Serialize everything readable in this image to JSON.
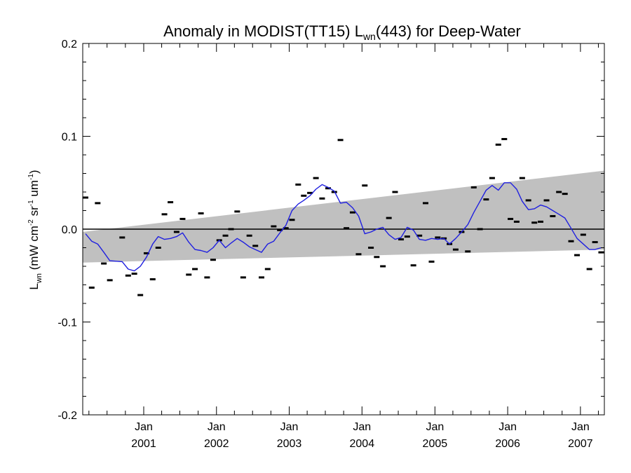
{
  "chart_data": {
    "type": "scatter",
    "title": {
      "prefix": "Anomaly in MODIST(TT15) L",
      "sub": "wn",
      "suffix": "(443) for Deep-Water"
    },
    "ylabel": {
      "L": "L",
      "wn": "wn",
      "p1": " (mW cm",
      "e1": "-2",
      "p2": " sr",
      "e2": "-1",
      "p3": " um",
      "e3": "-1",
      "p4": ")"
    },
    "xlim": [
      "2000-03-01",
      "2007-05-01"
    ],
    "ylim": [
      -0.2,
      0.2
    ],
    "yticks": [
      {
        "value": 0.2,
        "label": "0.2"
      },
      {
        "value": 0.1,
        "label": "0.1"
      },
      {
        "value": 0.0,
        "label": "0.0"
      },
      {
        "value": -0.1,
        "label": "-0.1"
      },
      {
        "value": -0.2,
        "label": "-0.2"
      }
    ],
    "xticks": [
      {
        "date": "2001-01-01",
        "line1": "Jan",
        "line2": "2001"
      },
      {
        "date": "2002-01-01",
        "line1": "Jan",
        "line2": "2002"
      },
      {
        "date": "2003-01-01",
        "line1": "Jan",
        "line2": "2003"
      },
      {
        "date": "2004-01-01",
        "line1": "Jan",
        "line2": "2004"
      },
      {
        "date": "2005-01-01",
        "line1": "Jan",
        "line2": "2005"
      },
      {
        "date": "2006-01-01",
        "line1": "Jan",
        "line2": "2006"
      },
      {
        "date": "2007-01-01",
        "line1": "Jan",
        "line2": "2007"
      }
    ],
    "band": {
      "color": "#c0c0c0",
      "upper": [
        {
          "x": "2000-03-01",
          "y": -0.003
        },
        {
          "x": "2007-05-01",
          "y": 0.063
        }
      ],
      "lower": [
        {
          "x": "2000-03-01",
          "y": -0.036
        },
        {
          "x": "2007-05-01",
          "y": -0.022
        }
      ]
    },
    "zero_line": {
      "y": 0.0,
      "color": "#000000"
    },
    "monthly_points": {
      "marker": "dash",
      "color": "#000000",
      "points": [
        {
          "x": "2000-03",
          "y": 0.034
        },
        {
          "x": "2000-04",
          "y": -0.063
        },
        {
          "x": "2000-05",
          "y": 0.028
        },
        {
          "x": "2000-06",
          "y": -0.037
        },
        {
          "x": "2000-07",
          "y": -0.055
        },
        {
          "x": "2000-09",
          "y": -0.009
        },
        {
          "x": "2000-10",
          "y": -0.05
        },
        {
          "x": "2000-11",
          "y": -0.048
        },
        {
          "x": "2000-12",
          "y": -0.071
        },
        {
          "x": "2001-01",
          "y": -0.026
        },
        {
          "x": "2001-02",
          "y": -0.054
        },
        {
          "x": "2001-03",
          "y": -0.02
        },
        {
          "x": "2001-04",
          "y": 0.016
        },
        {
          "x": "2001-05",
          "y": 0.029
        },
        {
          "x": "2001-06",
          "y": -0.003
        },
        {
          "x": "2001-07",
          "y": 0.011
        },
        {
          "x": "2001-08",
          "y": -0.049
        },
        {
          "x": "2001-09",
          "y": -0.043
        },
        {
          "x": "2001-10",
          "y": 0.017
        },
        {
          "x": "2001-11",
          "y": -0.052
        },
        {
          "x": "2001-12",
          "y": -0.033
        },
        {
          "x": "2002-01",
          "y": -0.012
        },
        {
          "x": "2002-02",
          "y": -0.007
        },
        {
          "x": "2002-03",
          "y": 0.0
        },
        {
          "x": "2002-04",
          "y": 0.019
        },
        {
          "x": "2002-05",
          "y": -0.052
        },
        {
          "x": "2002-06",
          "y": -0.007
        },
        {
          "x": "2002-07",
          "y": -0.018
        },
        {
          "x": "2002-08",
          "y": -0.052
        },
        {
          "x": "2002-09",
          "y": -0.043
        },
        {
          "x": "2002-10",
          "y": 0.003
        },
        {
          "x": "2002-11",
          "y": -0.001
        },
        {
          "x": "2002-12",
          "y": 0.001
        },
        {
          "x": "2003-01",
          "y": 0.01
        },
        {
          "x": "2003-02",
          "y": 0.048
        },
        {
          "x": "2003-03",
          "y": 0.036
        },
        {
          "x": "2003-04",
          "y": 0.039
        },
        {
          "x": "2003-05",
          "y": 0.055
        },
        {
          "x": "2003-06",
          "y": 0.033
        },
        {
          "x": "2003-07",
          "y": 0.044
        },
        {
          "x": "2003-08",
          "y": 0.04
        },
        {
          "x": "2003-09",
          "y": 0.096
        },
        {
          "x": "2003-10",
          "y": 0.001
        },
        {
          "x": "2003-11",
          "y": 0.018
        },
        {
          "x": "2003-12",
          "y": -0.027
        },
        {
          "x": "2004-01",
          "y": 0.047
        },
        {
          "x": "2004-02",
          "y": -0.02
        },
        {
          "x": "2004-03",
          "y": -0.03
        },
        {
          "x": "2004-04",
          "y": -0.04
        },
        {
          "x": "2004-05",
          "y": 0.012
        },
        {
          "x": "2004-06",
          "y": 0.04
        },
        {
          "x": "2004-07",
          "y": -0.011
        },
        {
          "x": "2004-08",
          "y": -0.008
        },
        {
          "x": "2004-09",
          "y": -0.039
        },
        {
          "x": "2004-10",
          "y": -0.007
        },
        {
          "x": "2004-11",
          "y": 0.028
        },
        {
          "x": "2004-12",
          "y": -0.035
        },
        {
          "x": "2005-01",
          "y": -0.009
        },
        {
          "x": "2005-02",
          "y": -0.01
        },
        {
          "x": "2005-03",
          "y": -0.016
        },
        {
          "x": "2005-04",
          "y": -0.022
        },
        {
          "x": "2005-05",
          "y": -0.003
        },
        {
          "x": "2005-06",
          "y": -0.024
        },
        {
          "x": "2005-07",
          "y": 0.045
        },
        {
          "x": "2005-08",
          "y": 0.0
        },
        {
          "x": "2005-09",
          "y": 0.032
        },
        {
          "x": "2005-10",
          "y": 0.055
        },
        {
          "x": "2005-11",
          "y": 0.091
        },
        {
          "x": "2005-12",
          "y": 0.097
        },
        {
          "x": "2006-01",
          "y": 0.011
        },
        {
          "x": "2006-02",
          "y": 0.008
        },
        {
          "x": "2006-03",
          "y": 0.055
        },
        {
          "x": "2006-04",
          "y": 0.031
        },
        {
          "x": "2006-05",
          "y": 0.007
        },
        {
          "x": "2006-06",
          "y": 0.008
        },
        {
          "x": "2006-07",
          "y": 0.031
        },
        {
          "x": "2006-08",
          "y": 0.014
        },
        {
          "x": "2006-09",
          "y": 0.04
        },
        {
          "x": "2006-10",
          "y": 0.038
        },
        {
          "x": "2006-11",
          "y": -0.013
        },
        {
          "x": "2006-12",
          "y": -0.028
        },
        {
          "x": "2007-01",
          "y": -0.006
        },
        {
          "x": "2007-02",
          "y": -0.043
        },
        {
          "x": "2007-03",
          "y": -0.014
        },
        {
          "x": "2007-04",
          "y": -0.025
        }
      ]
    },
    "smoothed_line": {
      "color": "#1f1fe0",
      "points": [
        {
          "x": "2000-03",
          "y": -0.005
        },
        {
          "x": "2000-04",
          "y": -0.013
        },
        {
          "x": "2000-05",
          "y": -0.016
        },
        {
          "x": "2000-06",
          "y": -0.025
        },
        {
          "x": "2000-07",
          "y": -0.034
        },
        {
          "x": "2000-09",
          "y": -0.035
        },
        {
          "x": "2000-10",
          "y": -0.043
        },
        {
          "x": "2000-11",
          "y": -0.045
        },
        {
          "x": "2000-12",
          "y": -0.04
        },
        {
          "x": "2001-01",
          "y": -0.03
        },
        {
          "x": "2001-02",
          "y": -0.016
        },
        {
          "x": "2001-03",
          "y": -0.008
        },
        {
          "x": "2001-04",
          "y": -0.011
        },
        {
          "x": "2001-05",
          "y": -0.01
        },
        {
          "x": "2001-06",
          "y": -0.008
        },
        {
          "x": "2001-07",
          "y": -0.004
        },
        {
          "x": "2001-08",
          "y": -0.014
        },
        {
          "x": "2001-09",
          "y": -0.022
        },
        {
          "x": "2001-10",
          "y": -0.023
        },
        {
          "x": "2001-11",
          "y": -0.025
        },
        {
          "x": "2001-12",
          "y": -0.02
        },
        {
          "x": "2002-01",
          "y": -0.012
        },
        {
          "x": "2002-02",
          "y": -0.02
        },
        {
          "x": "2002-03",
          "y": -0.015
        },
        {
          "x": "2002-04",
          "y": -0.01
        },
        {
          "x": "2002-05",
          "y": -0.014
        },
        {
          "x": "2002-06",
          "y": -0.019
        },
        {
          "x": "2002-07",
          "y": -0.022
        },
        {
          "x": "2002-08",
          "y": -0.025
        },
        {
          "x": "2002-09",
          "y": -0.016
        },
        {
          "x": "2002-10",
          "y": -0.013
        },
        {
          "x": "2002-11",
          "y": -0.004
        },
        {
          "x": "2002-12",
          "y": 0.004
        },
        {
          "x": "2003-01",
          "y": 0.02
        },
        {
          "x": "2003-02",
          "y": 0.027
        },
        {
          "x": "2003-03",
          "y": 0.031
        },
        {
          "x": "2003-04",
          "y": 0.036
        },
        {
          "x": "2003-05",
          "y": 0.043
        },
        {
          "x": "2003-06",
          "y": 0.048
        },
        {
          "x": "2003-07",
          "y": 0.045
        },
        {
          "x": "2003-08",
          "y": 0.041
        },
        {
          "x": "2003-09",
          "y": 0.028
        },
        {
          "x": "2003-10",
          "y": 0.029
        },
        {
          "x": "2003-11",
          "y": 0.023
        },
        {
          "x": "2003-12",
          "y": 0.014
        },
        {
          "x": "2004-01",
          "y": -0.005
        },
        {
          "x": "2004-02",
          "y": -0.003
        },
        {
          "x": "2004-03",
          "y": 0.0
        },
        {
          "x": "2004-04",
          "y": 0.002
        },
        {
          "x": "2004-05",
          "y": -0.006
        },
        {
          "x": "2004-06",
          "y": -0.011
        },
        {
          "x": "2004-07",
          "y": -0.009
        },
        {
          "x": "2004-08",
          "y": 0.002
        },
        {
          "x": "2004-09",
          "y": -0.001
        },
        {
          "x": "2004-10",
          "y": -0.011
        },
        {
          "x": "2004-11",
          "y": -0.012
        },
        {
          "x": "2004-12",
          "y": -0.01
        },
        {
          "x": "2005-01",
          "y": -0.011
        },
        {
          "x": "2005-02",
          "y": -0.01
        },
        {
          "x": "2005-03",
          "y": -0.016
        },
        {
          "x": "2005-04",
          "y": -0.01
        },
        {
          "x": "2005-05",
          "y": -0.003
        },
        {
          "x": "2005-06",
          "y": 0.005
        },
        {
          "x": "2005-07",
          "y": 0.018
        },
        {
          "x": "2005-08",
          "y": 0.03
        },
        {
          "x": "2005-09",
          "y": 0.042
        },
        {
          "x": "2005-10",
          "y": 0.047
        },
        {
          "x": "2005-11",
          "y": 0.042
        },
        {
          "x": "2005-12",
          "y": 0.05
        },
        {
          "x": "2006-01",
          "y": 0.05
        },
        {
          "x": "2006-02",
          "y": 0.043
        },
        {
          "x": "2006-03",
          "y": 0.03
        },
        {
          "x": "2006-04",
          "y": 0.021
        },
        {
          "x": "2006-05",
          "y": 0.022
        },
        {
          "x": "2006-06",
          "y": 0.026
        },
        {
          "x": "2006-07",
          "y": 0.024
        },
        {
          "x": "2006-08",
          "y": 0.02
        },
        {
          "x": "2006-09",
          "y": 0.016
        },
        {
          "x": "2006-10",
          "y": 0.012
        },
        {
          "x": "2006-11",
          "y": 0.001
        },
        {
          "x": "2006-12",
          "y": -0.01
        },
        {
          "x": "2007-01",
          "y": -0.016
        },
        {
          "x": "2007-02",
          "y": -0.022
        },
        {
          "x": "2007-03",
          "y": -0.022
        },
        {
          "x": "2007-04",
          "y": -0.02
        }
      ]
    }
  }
}
